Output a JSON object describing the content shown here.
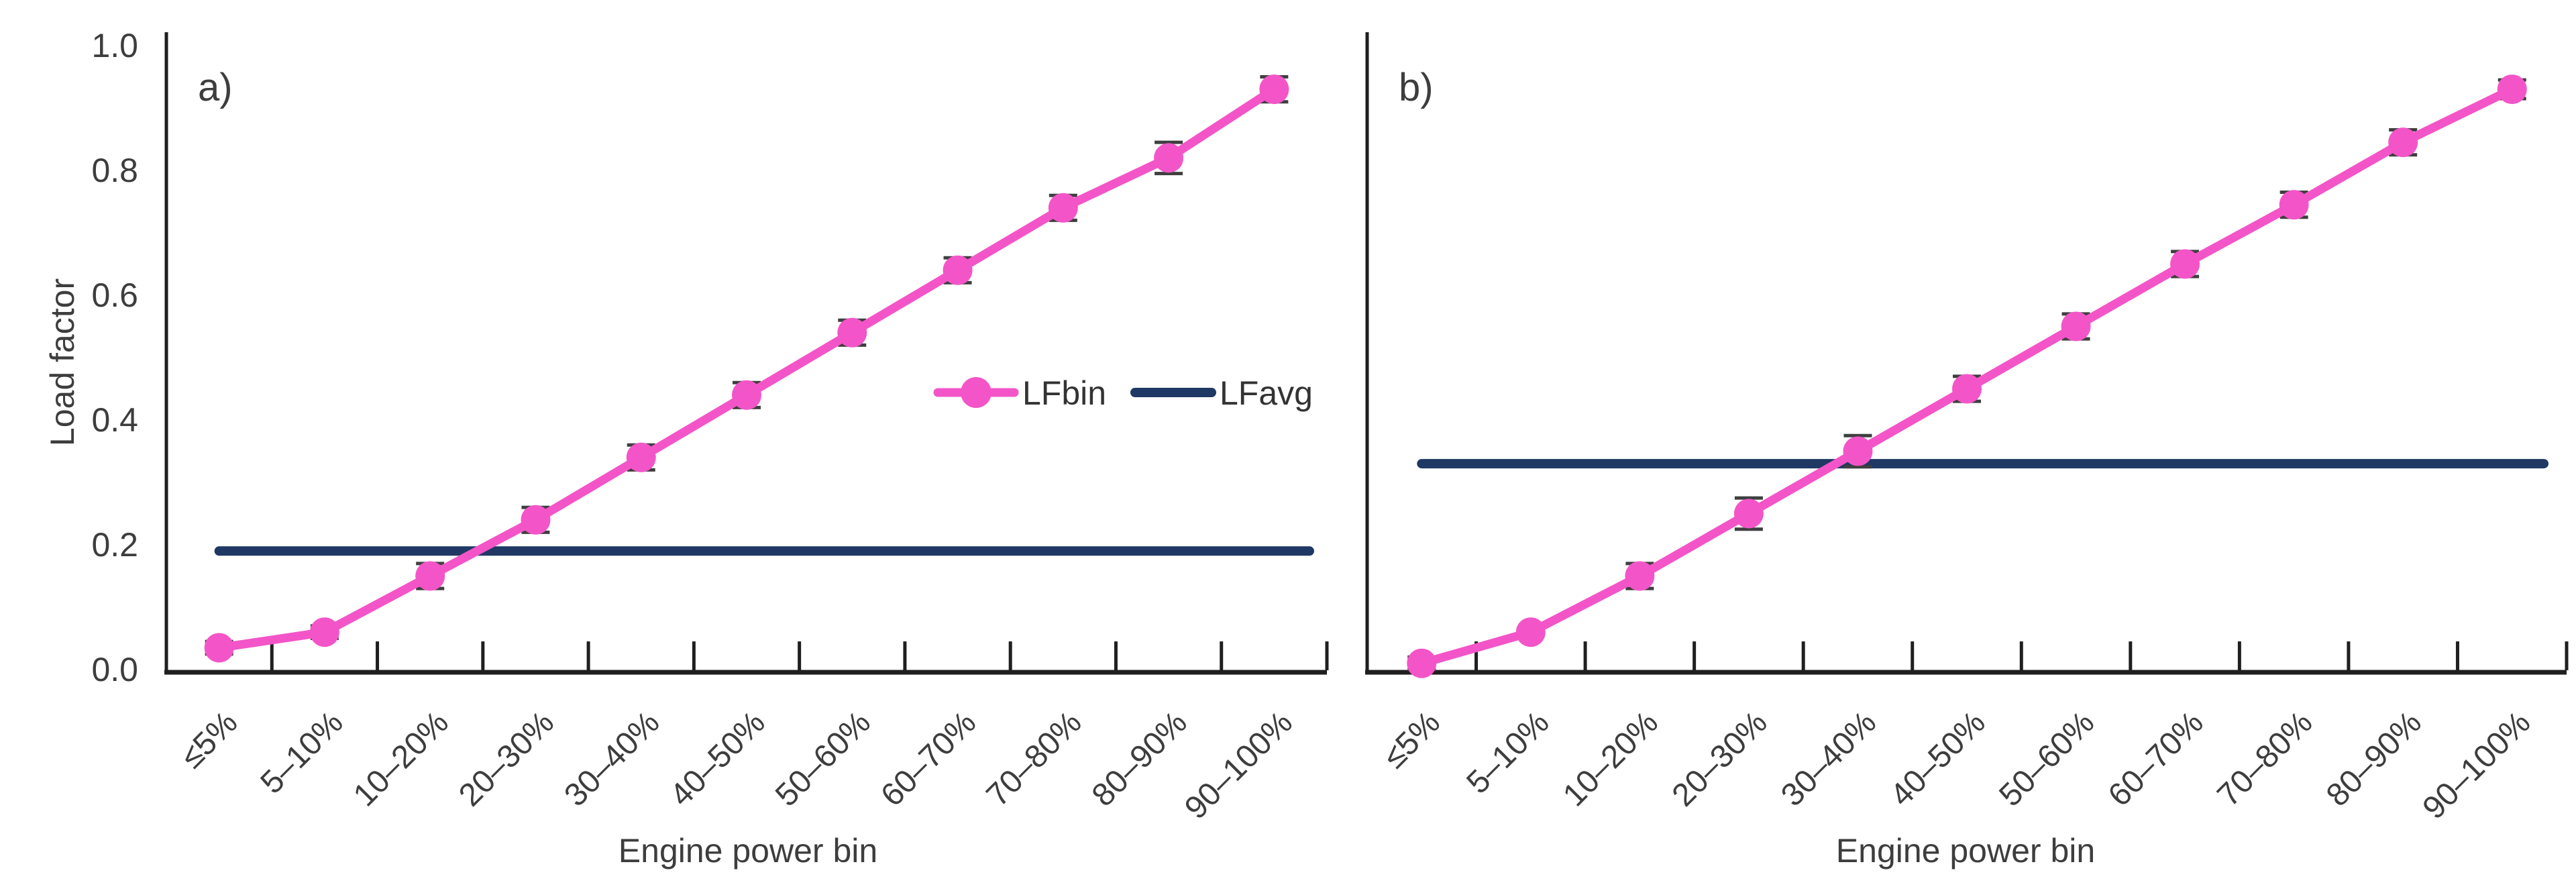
{
  "colors": {
    "lfbin_pink": "#F355C8",
    "lfavg_navy": "#1F3864",
    "axis": "#1f1f1f",
    "error_bar": "#3f3f3f",
    "text": "#3d3d3d"
  },
  "legend": {
    "items": [
      {
        "label": "LFbin",
        "swatch": "pink-line-with-circle-marker"
      },
      {
        "label": "LFavg",
        "swatch": "navy-line"
      }
    ],
    "position": "inside panel a, right-middle"
  },
  "chart_data": [
    {
      "type": "line",
      "panel_label": "a)",
      "categories": [
        "≤5%",
        "5–10%",
        "10–20%",
        "20–30%",
        "30–40%",
        "40–50%",
        "50–60%",
        "60–70%",
        "70–80%",
        "80–90%",
        "90–100%"
      ],
      "series": [
        {
          "name": "LFbin",
          "style": "line-with-circle-markers-and-error-bars",
          "values": [
            0.035,
            0.06,
            0.15,
            0.24,
            0.34,
            0.44,
            0.54,
            0.64,
            0.74,
            0.82,
            0.93
          ],
          "errors": [
            0.01,
            0.01,
            0.02,
            0.02,
            0.02,
            0.02,
            0.02,
            0.02,
            0.02,
            0.025,
            0.02
          ]
        },
        {
          "name": "LFavg",
          "style": "horizontal-reference-line",
          "value": 0.19
        }
      ],
      "xlabel": "Engine power bin",
      "ylabel": "Load factor",
      "ylim": [
        0.0,
        1.0
      ],
      "ytick_labels": [
        "0.0",
        "0.2",
        "0.4",
        "0.6",
        "0.8",
        "1.0"
      ],
      "grid": false,
      "x_tick_label_rotation_deg": 45
    },
    {
      "type": "line",
      "panel_label": "b)",
      "categories": [
        "≤5%",
        "5–10%",
        "10–20%",
        "20–30%",
        "30–40%",
        "40–50%",
        "50–60%",
        "60–70%",
        "70–80%",
        "80–90%",
        "90–100%"
      ],
      "series": [
        {
          "name": "LFbin",
          "style": "line-with-circle-markers-and-error-bars",
          "values": [
            0.01,
            0.06,
            0.15,
            0.25,
            0.35,
            0.45,
            0.55,
            0.65,
            0.745,
            0.845,
            0.93
          ],
          "errors": [
            0.01,
            0.005,
            0.02,
            0.025,
            0.025,
            0.02,
            0.02,
            0.02,
            0.02,
            0.02,
            0.015
          ]
        },
        {
          "name": "LFavg",
          "style": "horizontal-reference-line",
          "value": 0.33
        }
      ],
      "xlabel": "Engine power bin",
      "ylabel": "",
      "ylim": [
        0.0,
        1.0
      ],
      "ytick_labels": [],
      "grid": false,
      "x_tick_label_rotation_deg": 45
    }
  ]
}
